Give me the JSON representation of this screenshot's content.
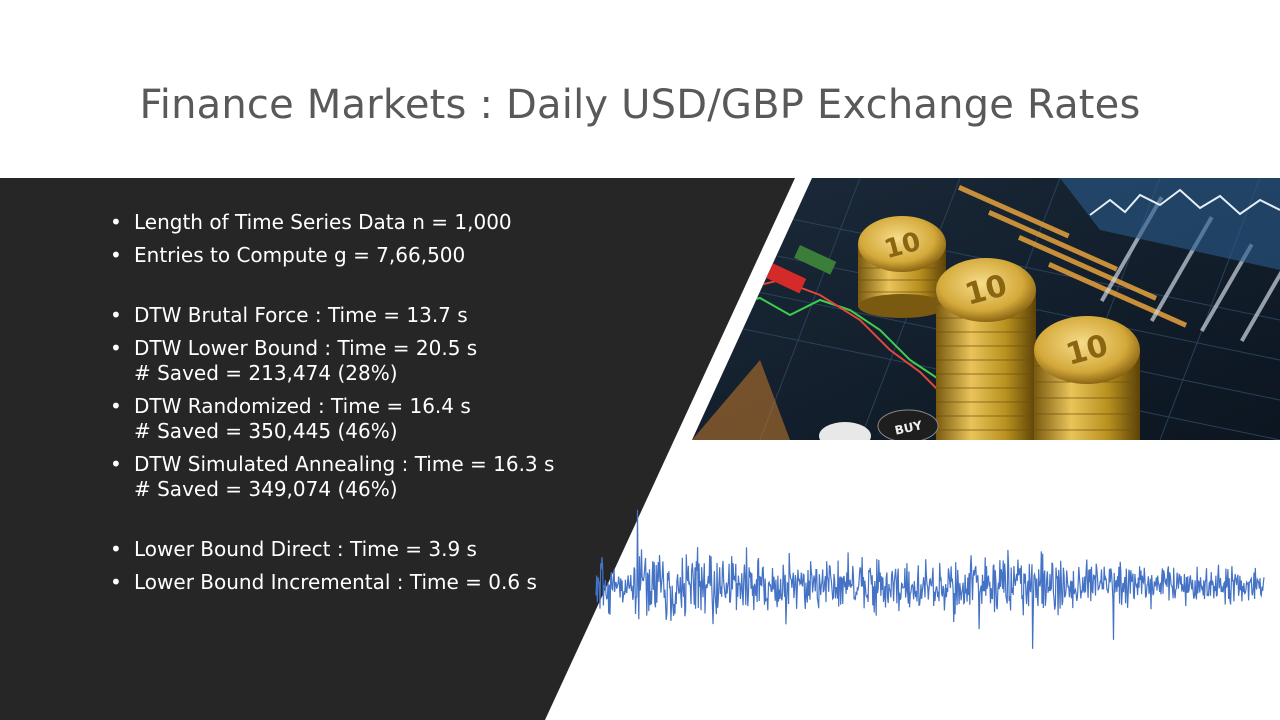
{
  "slide": {
    "title": "Finance Markets : Daily USD/GBP Exchange Rates",
    "bullets_group1": [
      {
        "text": "Length of Time Series Data n = 1,000"
      },
      {
        "text": "Entries to Compute g =  7,66,500"
      }
    ],
    "bullets_group2": [
      {
        "text": "DTW Brutal Force : Time = 13.7 s"
      },
      {
        "text": "DTW Lower Bound : Time = 20.5 s",
        "line2": "# Saved = 213,474 (28%)"
      },
      {
        "text": "DTW Randomized : Time  = 16.4 s",
        "line2": "# Saved = 350,445 (46%)"
      },
      {
        "text": "DTW Simulated Annealing : Time  = 16.3 s",
        "line2": "# Saved = 349,074 (46%)"
      }
    ],
    "bullets_group3": [
      {
        "text": "Lower Bound Direct : Time = 3.9 s"
      },
      {
        "text": "Lower Bound Incremental : Time = 0.6 s"
      }
    ],
    "photo_labels": {
      "coin": "10",
      "button": "BUY"
    },
    "colors": {
      "panel": "#262626",
      "series": "#4472c4",
      "title": "#595959"
    }
  }
}
